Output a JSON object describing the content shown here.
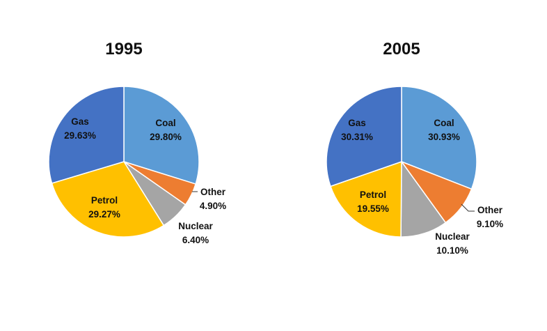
{
  "chart_data": [
    {
      "type": "pie",
      "title": "1995",
      "slices": [
        {
          "label": "Coal",
          "value": 29.8,
          "value_text": "29.80%",
          "color": "#5B9BD5"
        },
        {
          "label": "Other",
          "value": 4.9,
          "value_text": "4.90%",
          "color": "#ED7D31"
        },
        {
          "label": "Nuclear",
          "value": 6.4,
          "value_text": "6.40%",
          "color": "#A5A5A5"
        },
        {
          "label": "Petrol",
          "value": 29.27,
          "value_text": "29.27%",
          "color": "#FFC000"
        },
        {
          "label": "Gas",
          "value": 29.63,
          "value_text": "29.63%",
          "color": "#4472C4"
        }
      ]
    },
    {
      "type": "pie",
      "title": "2005",
      "slices": [
        {
          "label": "Coal",
          "value": 30.93,
          "value_text": "30.93%",
          "color": "#5B9BD5"
        },
        {
          "label": "Other",
          "value": 9.1,
          "value_text": "9.10%",
          "color": "#ED7D31"
        },
        {
          "label": "Nuclear",
          "value": 10.1,
          "value_text": "10.10%",
          "color": "#A5A5A5"
        },
        {
          "label": "Petrol",
          "value": 19.55,
          "value_text": "19.55%",
          "color": "#FFC000"
        },
        {
          "label": "Gas",
          "value": 30.31,
          "value_text": "30.31%",
          "color": "#4472C4"
        }
      ]
    }
  ]
}
